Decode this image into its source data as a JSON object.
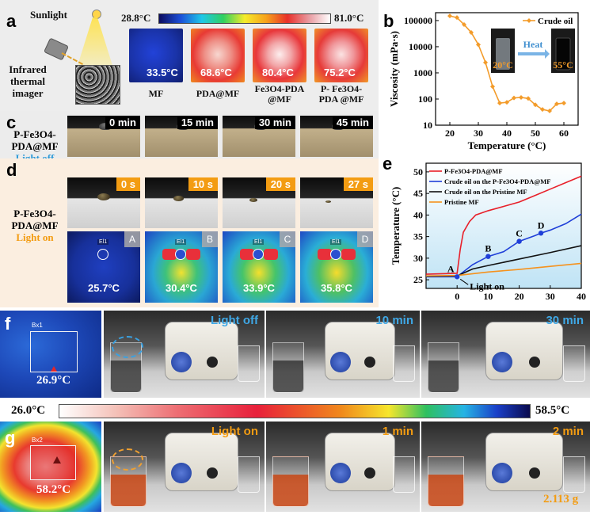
{
  "panel_a": {
    "letter": "a",
    "sunlight": "Sunlight",
    "imager": [
      "Infrared",
      "thermal",
      "imager"
    ],
    "scale_min": "28.8°C",
    "scale_max": "81.0°C",
    "samples": [
      {
        "temp": "33.5°C",
        "label": [
          "MF"
        ]
      },
      {
        "temp": "68.6°C",
        "label": [
          "PDA@MF"
        ]
      },
      {
        "temp": "80.4°C",
        "label": [
          "Fe3O4-PDA",
          "@MF"
        ]
      },
      {
        "temp": "75.2°C",
        "label": [
          "P- Fe3O4-",
          "PDA @MF"
        ]
      }
    ]
  },
  "panel_b": {
    "letter": "b",
    "chart_data": {
      "type": "line",
      "xlabel": "Temperature (°C)",
      "ylabel": "Viscosity (mPa·s)",
      "x": [
        20,
        22.5,
        25,
        27.5,
        30,
        32.5,
        35,
        37.5,
        40,
        42.5,
        45,
        47.5,
        50,
        52.5,
        55,
        57.5,
        60
      ],
      "series": [
        {
          "name": "Crude oil",
          "values": [
            150000,
            130000,
            70000,
            35000,
            12000,
            2500,
            300,
            70,
            75,
            110,
            115,
            105,
            60,
            40,
            35,
            65,
            70
          ]
        }
      ],
      "xlim": [
        15,
        65
      ],
      "ylim": [
        10,
        200000
      ],
      "yscale": "log",
      "xticks": [
        "20",
        "30",
        "40",
        "50",
        "60"
      ],
      "yticks": [
        "10",
        "100",
        "1000",
        "10000",
        "100000"
      ],
      "inset_cold": "20°C",
      "inset_hot": "55°C",
      "inset_arrow": "Heat",
      "color": "#f39c2b"
    }
  },
  "panel_c": {
    "letter": "c",
    "side_label": [
      "P-Fe3O4-",
      "PDA@MF"
    ],
    "light": "Light off",
    "times": [
      "0 min",
      "15 min",
      "30 min",
      "45 min"
    ]
  },
  "panel_d": {
    "letter": "d",
    "side_label": [
      "P-Fe3O4-",
      "PDA@MF"
    ],
    "light": "Light on",
    "times": [
      "0 s",
      "10 s",
      "20 s",
      "27 s"
    ],
    "letters": [
      "A",
      "B",
      "C",
      "D"
    ],
    "temps": [
      "25.7°C",
      "30.4°C",
      "33.9°C",
      "35.8°C"
    ],
    "marker": "El1"
  },
  "panel_e": {
    "letter": "e",
    "chart_data": {
      "type": "line",
      "xlabel": "",
      "ylabel": "Temperature (°C)",
      "xlim": [
        -10,
        40
      ],
      "ylim": [
        23,
        52
      ],
      "xticks": [
        "0",
        "10",
        "20",
        "30",
        "40"
      ],
      "yticks": [
        "25",
        "30",
        "35",
        "40",
        "45",
        "50"
      ],
      "series": [
        {
          "name": "P-Fe3O4-PDA@MF",
          "color": "#e8202a",
          "x": [
            -10,
            0,
            1,
            2,
            4,
            6,
            8,
            10,
            15,
            20,
            25,
            30,
            35,
            40
          ],
          "values": [
            26.3,
            26.5,
            32,
            36,
            38.5,
            40,
            40.5,
            41,
            42,
            43,
            44.5,
            46,
            47.5,
            49
          ]
        },
        {
          "name": "Crude oil on the P-Fe3O4-PDA@MF",
          "color": "#1f3fd8",
          "x": [
            -10,
            0,
            5,
            10,
            15,
            20,
            25,
            27,
            30,
            35,
            40
          ],
          "values": [
            25.7,
            25.7,
            28.5,
            30.4,
            31.5,
            33.9,
            35.2,
            35.8,
            36.5,
            38,
            40.2
          ]
        },
        {
          "name": "Crude oil on the Pristine MF",
          "color": "#111111",
          "x": [
            -10,
            0,
            5,
            10,
            20,
            30,
            40
          ],
          "values": [
            25.8,
            25.9,
            27.5,
            28.3,
            29.8,
            31.3,
            32.9
          ]
        },
        {
          "name": "Pristine MF",
          "color": "#f5921e",
          "x": [
            -10,
            0,
            10,
            20,
            30,
            40
          ],
          "values": [
            25.9,
            26,
            26.8,
            27.4,
            28.1,
            28.8
          ]
        }
      ],
      "points": [
        {
          "label": "A",
          "x": 0,
          "y": 25.7
        },
        {
          "label": "B",
          "x": 10,
          "y": 30.4
        },
        {
          "label": "C",
          "x": 20,
          "y": 33.9
        },
        {
          "label": "D",
          "x": 27,
          "y": 35.8
        }
      ],
      "annotation": "Light on"
    }
  },
  "panel_f": {
    "letter": "f",
    "temp": "26.9°C",
    "box_label": "Bx1",
    "frames": [
      "Light off",
      "10 min",
      "30 min"
    ]
  },
  "scale_bar": {
    "min": "26.0°C",
    "max": "58.5°C"
  },
  "panel_g": {
    "letter": "g",
    "temp": "58.2°C",
    "box_label": "Bx2",
    "frames": [
      "Light on",
      "1 min",
      "2 min"
    ],
    "mass": "2.113 g"
  }
}
